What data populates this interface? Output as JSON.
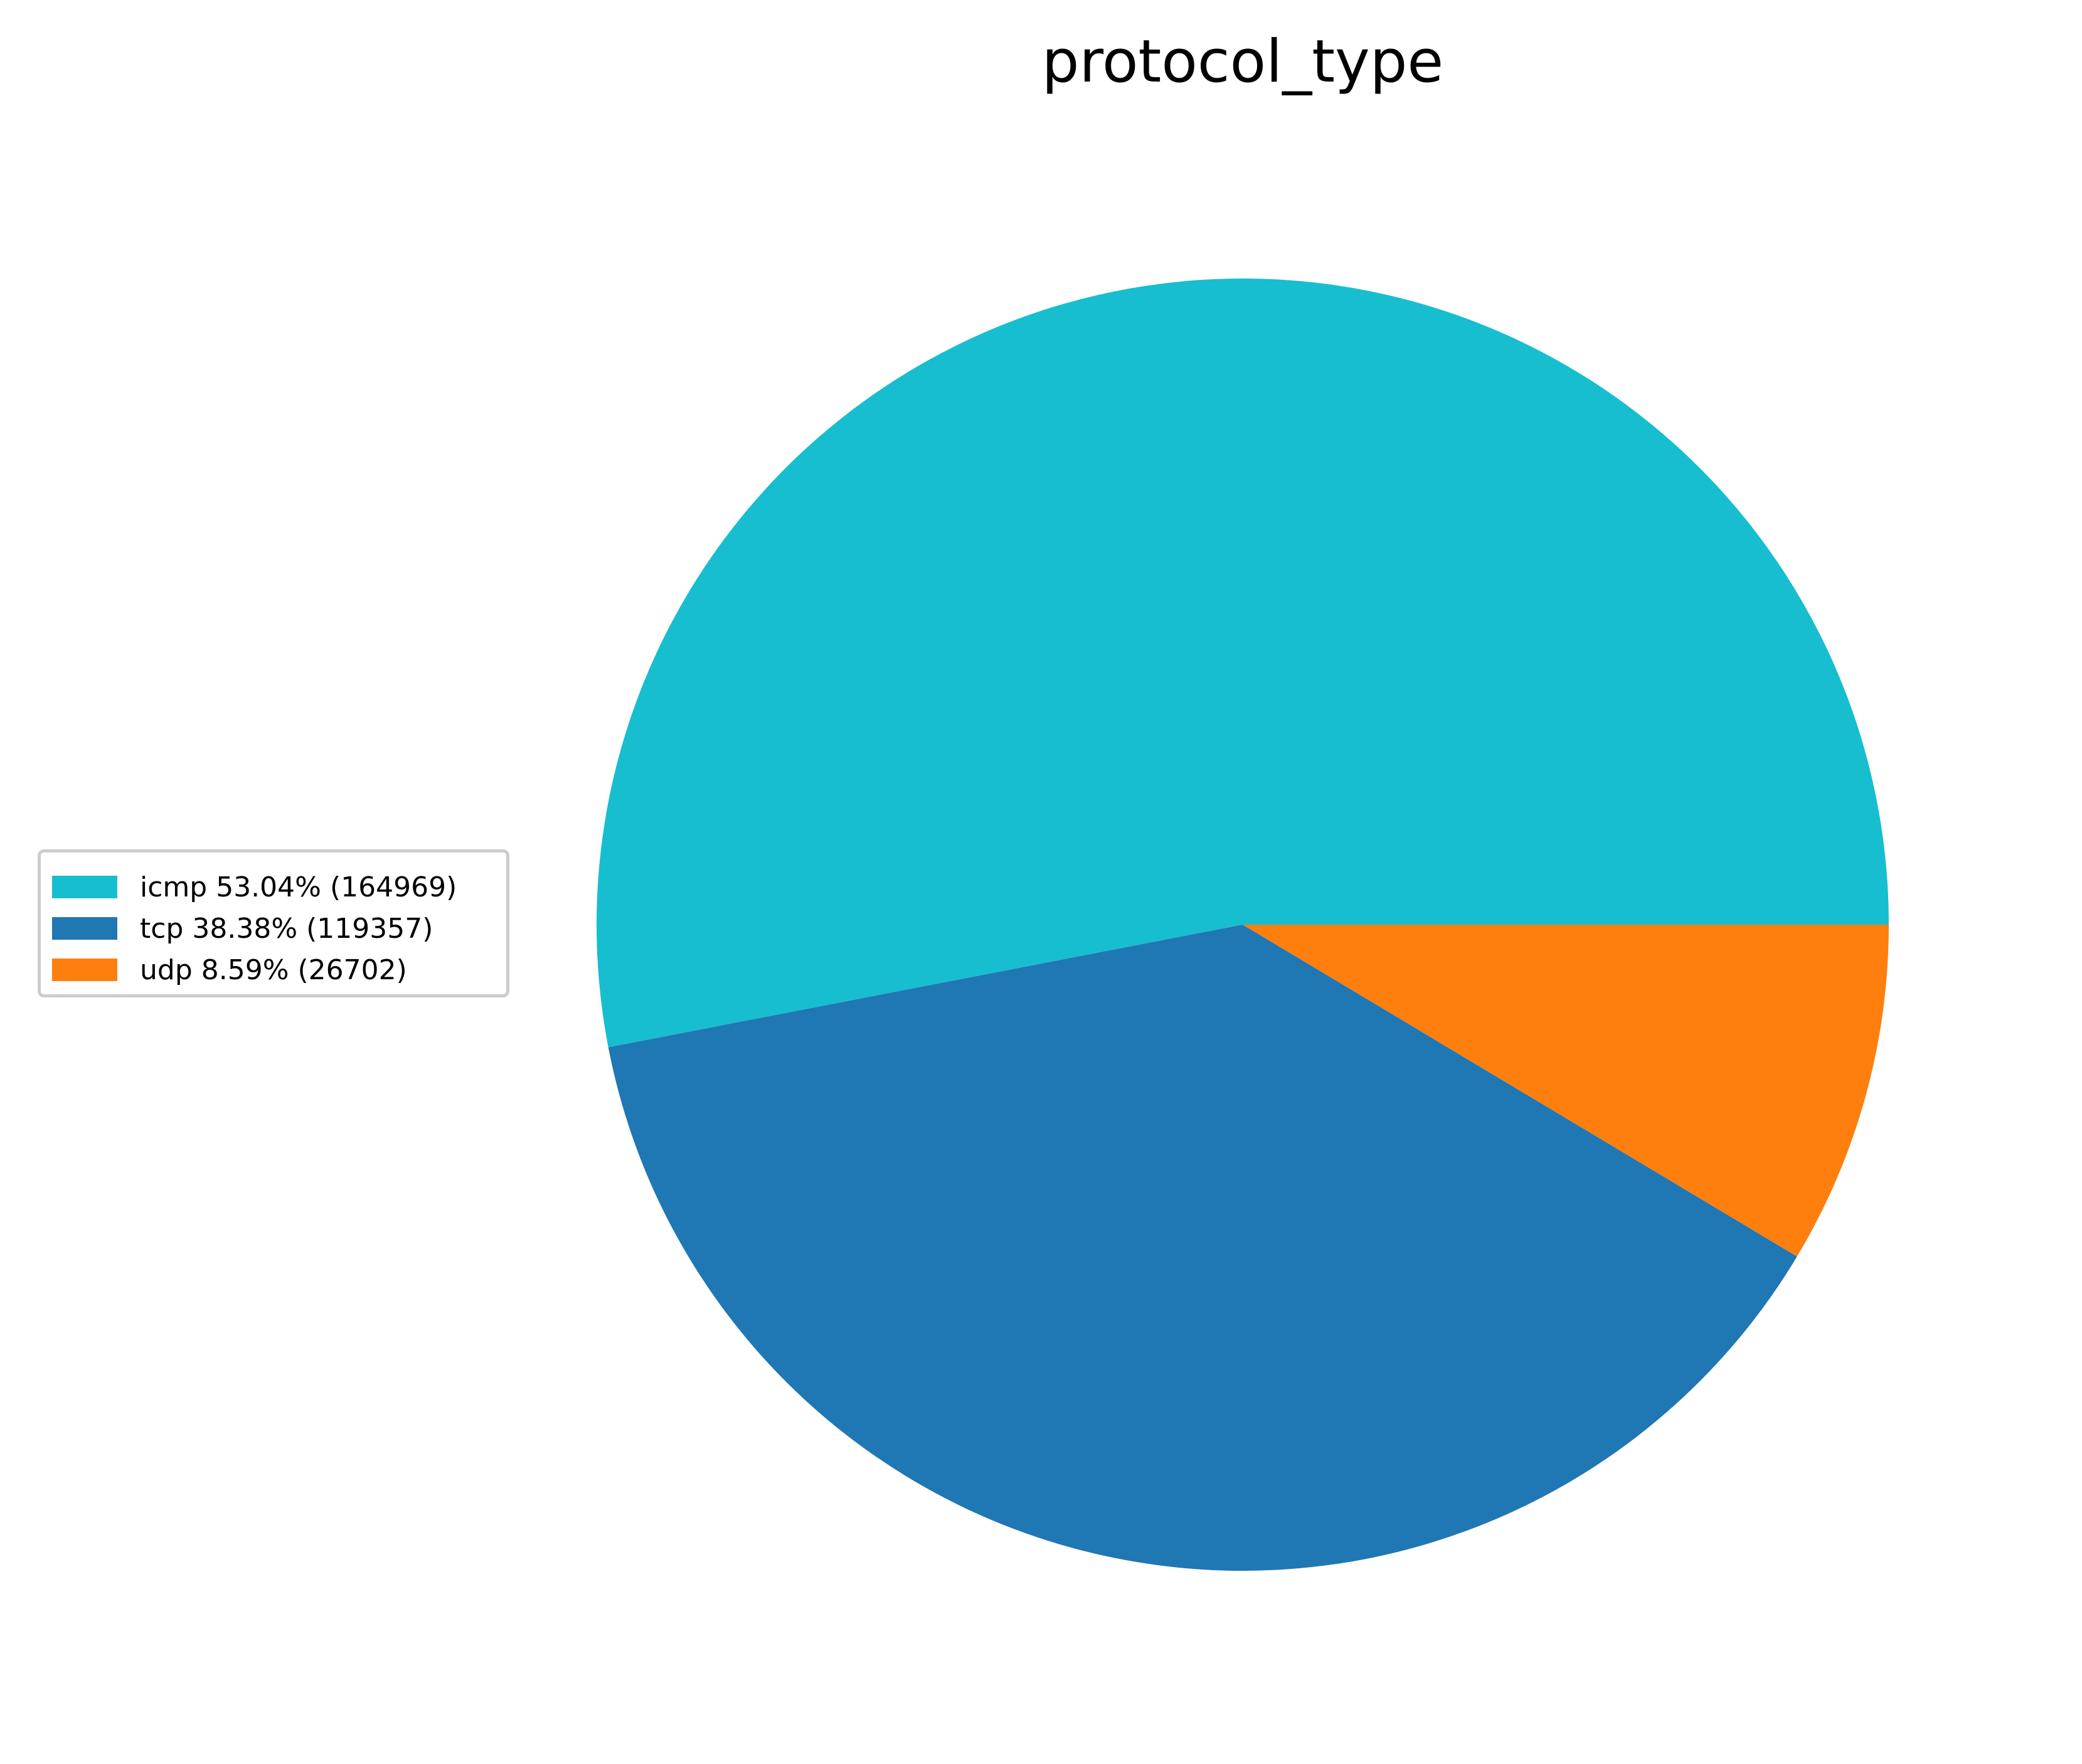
{
  "chart_data": {
    "type": "pie",
    "title": "protocol_type",
    "categories": [
      "icmp",
      "tcp",
      "udp"
    ],
    "values": [
      164969,
      119357,
      26702
    ],
    "percentages": [
      53.04,
      38.38,
      8.59
    ],
    "colors": [
      "#17becf",
      "#1f77b4",
      "#ff7f0e"
    ],
    "start_angle_deg": 0,
    "direction": "counterclockwise",
    "legend": {
      "position": "left",
      "entries": [
        "icmp 53.04% (164969)",
        "tcp 38.38% (119357)",
        "udp 8.59% (26702)"
      ]
    }
  }
}
